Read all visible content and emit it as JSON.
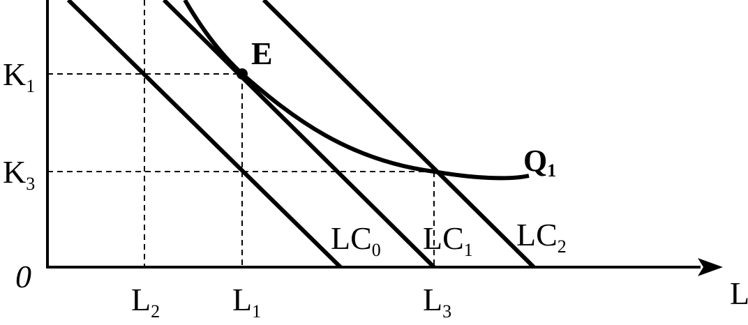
{
  "axes": {
    "origin": "0",
    "x_label": "L"
  },
  "k_labels": {
    "k1": {
      "main": "K",
      "sub": "1"
    },
    "k3": {
      "main": "K",
      "sub": "3"
    }
  },
  "l_labels": {
    "l2": {
      "main": "L",
      "sub": "2"
    },
    "l1": {
      "main": "L",
      "sub": "1"
    },
    "l3": {
      "main": "L",
      "sub": "3"
    }
  },
  "point_e": {
    "label": "E"
  },
  "curve_q": {
    "main": "Q",
    "sub": "1"
  },
  "cost_lines": {
    "lc0": {
      "main": "LC",
      "sub": "0"
    },
    "lc1": {
      "main": "LC",
      "sub": "1"
    },
    "lc2": {
      "main": "LC",
      "sub": "2"
    }
  },
  "colors": {
    "ink": "#000000",
    "background": "#ffffff"
  }
}
